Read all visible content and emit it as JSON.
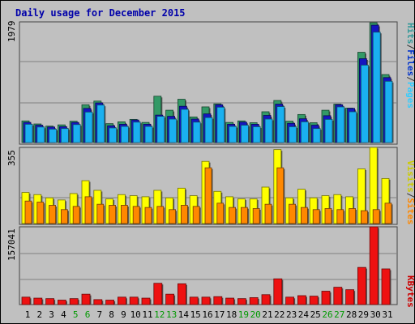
{
  "chart_data": {
    "type": "bar",
    "title": "Daily usage for December 2015",
    "categories": [
      "1",
      "2",
      "3",
      "4",
      "5",
      "6",
      "7",
      "8",
      "9",
      "10",
      "11",
      "12",
      "13",
      "14",
      "15",
      "16",
      "17",
      "18",
      "19",
      "20",
      "21",
      "22",
      "23",
      "24",
      "25",
      "26",
      "27",
      "28",
      "29",
      "30",
      "31"
    ],
    "weekend_categories": [
      "5",
      "6",
      "12",
      "13",
      "19",
      "20",
      "26",
      "27"
    ],
    "grid": true,
    "panels": [
      {
        "name": "top",
        "max_label": "1979",
        "ymax": 1979,
        "legend": [
          {
            "text": "Hits",
            "color": "#339999"
          },
          {
            "text": "/",
            "color": "#333333"
          },
          {
            "text": "Files",
            "color": "#0033cc"
          },
          {
            "text": "/",
            "color": "#333333"
          },
          {
            "text": "Pages",
            "color": "#33ccff"
          }
        ],
        "series": [
          {
            "name": "Hits",
            "color": "#339966",
            "values": [
              355,
              305,
              270,
              290,
              350,
              620,
              680,
              310,
              340,
              380,
              330,
              760,
              530,
              710,
              420,
              585,
              635,
              330,
              355,
              325,
              505,
              690,
              350,
              460,
              325,
              530,
              630,
              565,
              1480,
              1965,
              1115
            ]
          },
          {
            "name": "Files",
            "color": "#1515c0",
            "values": [
              330,
              285,
              255,
              260,
              330,
              560,
              650,
              275,
              300,
              370,
              300,
              450,
              430,
              595,
              385,
              470,
              620,
              300,
              335,
              300,
              445,
              630,
              315,
              390,
              285,
              440,
              620,
              560,
              1375,
              1925,
              1065
            ]
          },
          {
            "name": "Pages",
            "color": "#1ab0f0",
            "values": [
              300,
              255,
              220,
              230,
              295,
              500,
              615,
              240,
              265,
              335,
              265,
              430,
              385,
              545,
              335,
              410,
              580,
              265,
              285,
              260,
              385,
              590,
              260,
              340,
              230,
              380,
              585,
              505,
              1270,
              1810,
              1005
            ]
          }
        ]
      },
      {
        "name": "middle",
        "max_label": "355",
        "ymax": 355,
        "legend": [
          {
            "text": "Visits",
            "color": "#cccc00"
          },
          {
            "text": "/",
            "color": "#333333"
          },
          {
            "text": "Sites",
            "color": "#ff8800"
          }
        ],
        "series": [
          {
            "name": "Visits",
            "color": "#ffff00",
            "values": [
              145,
              135,
              120,
              110,
              140,
              200,
              155,
              115,
              135,
              130,
              125,
              155,
              120,
              165,
              130,
              290,
              150,
              125,
              115,
              115,
              170,
              345,
              120,
              160,
              120,
              130,
              135,
              125,
              255,
              355,
              210
            ]
          },
          {
            "name": "Sites",
            "color": "#ff8800",
            "values": [
              105,
              100,
              85,
              65,
              80,
              125,
              90,
              85,
              85,
              80,
              75,
              80,
              65,
              85,
              80,
              260,
              95,
              75,
              75,
              70,
              90,
              260,
              90,
              75,
              65,
              70,
              65,
              70,
              60,
              65,
              95
            ]
          }
        ]
      },
      {
        "name": "bottom",
        "max_label": "157041",
        "ymax": 157041,
        "legend": [
          {
            "text": "KBytes",
            "color": "#cc0000"
          }
        ],
        "series": [
          {
            "name": "KBytes",
            "color": "#ee1111",
            "values": [
              15000,
              13000,
              12000,
              9000,
              12000,
              21000,
              10000,
              9000,
              15000,
              15000,
              13000,
              43000,
              21000,
              42000,
              15000,
              15000,
              16000,
              13000,
              12000,
              14000,
              20000,
              52000,
              15000,
              18000,
              17000,
              27000,
              35000,
              30000,
              75000,
              157041,
              72000
            ]
          }
        ]
      }
    ]
  }
}
